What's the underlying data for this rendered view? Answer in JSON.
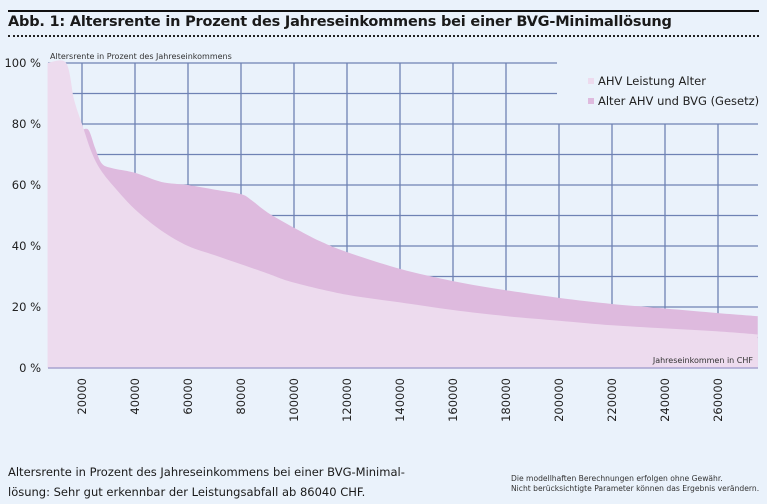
{
  "title": "Abb. 1: Altersrente in Prozent des Jahreseinkommens bei einer BVG-Minimallösung",
  "caption": {
    "line1": "Altersrente in Prozent des Jahreseinkommens bei einer BVG-Minimal-",
    "line2": "lösung: Sehr gut erkennbar der Leistungsabfall ab 86040 CHF."
  },
  "disclaimer": {
    "line1": "Die modellhaften Berechnungen erfolgen ohne Gewähr.",
    "line2": "Nicht berücksichtigte Parameter können das Ergebnis verändern."
  },
  "colors": {
    "background": "#eaf2fb",
    "grid": "#6f82b4",
    "ahv": "#eddbee",
    "bvg": "#debade"
  },
  "chart_data": {
    "type": "area",
    "title": "Abb. 1: Altersrente in Prozent des Jahreseinkommens bei einer BVG-Minimallösung",
    "ylabel": "Altersrente in Prozent des Jahreseinkommens",
    "xlabel": "Jahreseinkommen in CHF",
    "xlim": [
      7000,
      275000
    ],
    "ylim": [
      0,
      100
    ],
    "grid": true,
    "legend_position": "top-right",
    "yticks": [
      0,
      20,
      40,
      60,
      80,
      100
    ],
    "ytick_labels": [
      "0 %",
      "20 %",
      "40 %",
      "60 %",
      "80 %",
      "100 %"
    ],
    "xticks": [
      20000,
      40000,
      60000,
      80000,
      100000,
      120000,
      140000,
      160000,
      180000,
      200000,
      220000,
      240000,
      260000
    ],
    "xtick_labels": [
      "20000",
      "40000",
      "60000",
      "80000",
      "100000",
      "120000",
      "140000",
      "160000",
      "180000",
      "200000",
      "220000",
      "240000",
      "260000"
    ],
    "series": [
      {
        "name": "AHV Leistung Alter",
        "x": [
          7000,
          14000,
          17000,
          20000,
          23500,
          27000,
          32500,
          40000,
          50000,
          60000,
          70000,
          80000,
          90000,
          100000,
          120000,
          140000,
          160000,
          180000,
          200000,
          220000,
          240000,
          260000,
          275000
        ],
        "y": [
          100,
          100,
          88,
          80,
          71,
          65,
          59,
          52,
          45,
          40,
          37,
          34,
          31,
          28,
          24,
          21.5,
          19,
          17,
          15.5,
          14,
          13,
          12,
          11
        ]
      },
      {
        "name": "Alter AHV und BVG (Gesetz)",
        "x": [
          20000,
          22500,
          25000,
          27500,
          31500,
          40000,
          50000,
          60000,
          70000,
          80000,
          84000,
          90000,
          100000,
          110000,
          120000,
          140000,
          160000,
          180000,
          200000,
          220000,
          240000,
          260000,
          275000
        ],
        "y": [
          78,
          78,
          72,
          67,
          65.5,
          64,
          61,
          60,
          58.5,
          57,
          55,
          51,
          46,
          41.5,
          38,
          32.5,
          28.5,
          25.5,
          23,
          21,
          19.5,
          18,
          17
        ]
      }
    ]
  }
}
